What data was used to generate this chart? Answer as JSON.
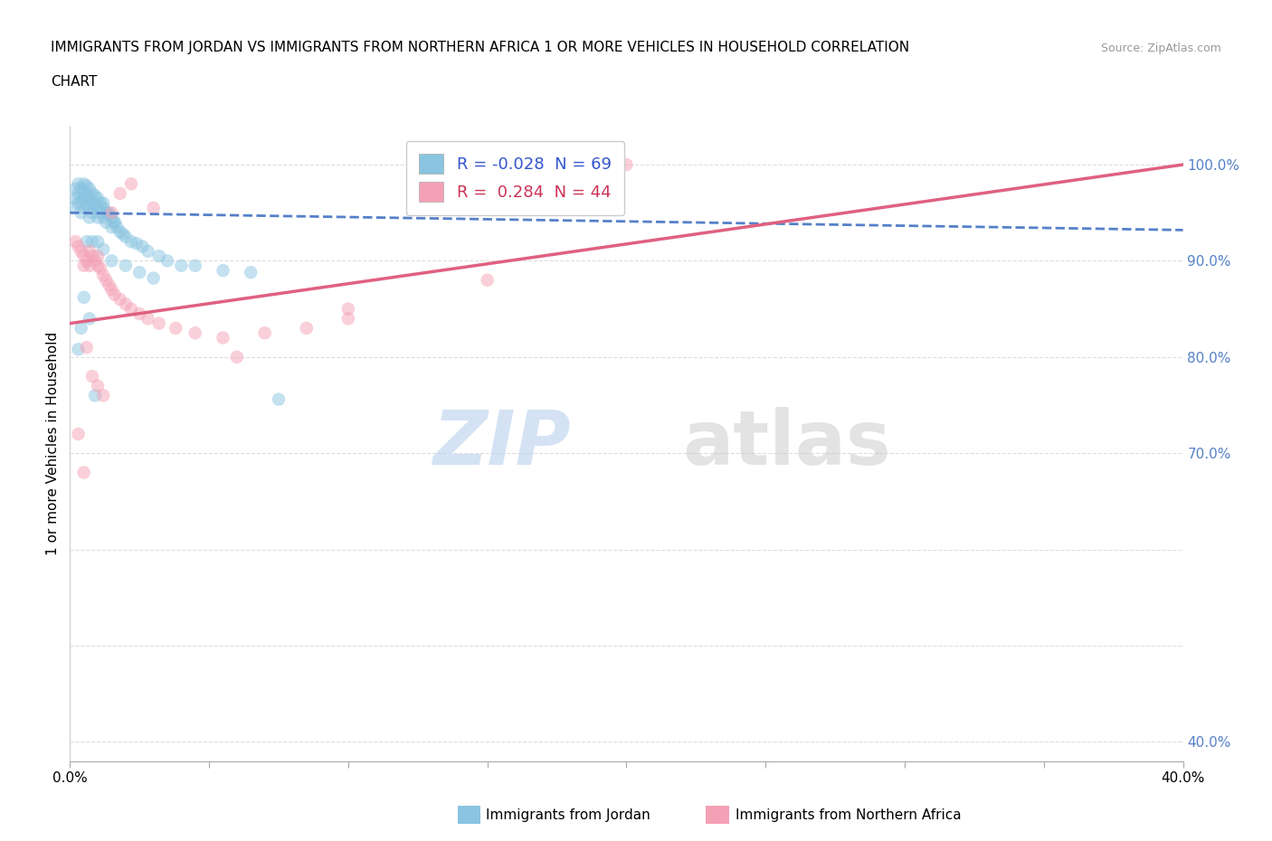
{
  "title_line1": "IMMIGRANTS FROM JORDAN VS IMMIGRANTS FROM NORTHERN AFRICA 1 OR MORE VEHICLES IN HOUSEHOLD CORRELATION",
  "title_line2": "CHART",
  "source": "Source: ZipAtlas.com",
  "ylabel": "1 or more Vehicles in Household",
  "legend_label1": "Immigrants from Jordan",
  "legend_label2": "Immigrants from Northern Africa",
  "R1": -0.028,
  "N1": 69,
  "R2": 0.284,
  "N2": 44,
  "color_jordan": "#89c4e1",
  "color_northern_africa": "#f4a0b5",
  "color_jordan_line": "#5580c8",
  "color_na_line": "#e06080",
  "xmin": 0.0,
  "xmax": 0.4,
  "ymin": 0.38,
  "ymax": 1.04,
  "ytick_positions": [
    0.4,
    0.5,
    0.6,
    0.7,
    0.8,
    0.9,
    1.0
  ],
  "ytick_labels": [
    "40.0%",
    "",
    "",
    "70.0%",
    "80.0%",
    "90.0%",
    "100.0%"
  ],
  "jordan_x": [
    0.001,
    0.002,
    0.002,
    0.003,
    0.003,
    0.003,
    0.004,
    0.004,
    0.004,
    0.005,
    0.005,
    0.005,
    0.005,
    0.006,
    0.006,
    0.006,
    0.007,
    0.007,
    0.007,
    0.007,
    0.008,
    0.008,
    0.008,
    0.009,
    0.009,
    0.01,
    0.01,
    0.01,
    0.011,
    0.011,
    0.012,
    0.012,
    0.013,
    0.013,
    0.014,
    0.015,
    0.015,
    0.016,
    0.017,
    0.018,
    0.019,
    0.02,
    0.022,
    0.024,
    0.026,
    0.028,
    0.032,
    0.035,
    0.04,
    0.045,
    0.055,
    0.065,
    0.012,
    0.014,
    0.016,
    0.009,
    0.007,
    0.006,
    0.005,
    0.004,
    0.003,
    0.008,
    0.01,
    0.012,
    0.015,
    0.02,
    0.025,
    0.03,
    0.075
  ],
  "jordan_y": [
    0.955,
    0.965,
    0.975,
    0.97,
    0.96,
    0.98,
    0.975,
    0.962,
    0.95,
    0.98,
    0.972,
    0.965,
    0.955,
    0.978,
    0.968,
    0.958,
    0.975,
    0.965,
    0.955,
    0.945,
    0.97,
    0.96,
    0.95,
    0.968,
    0.958,
    0.965,
    0.955,
    0.945,
    0.96,
    0.95,
    0.955,
    0.945,
    0.95,
    0.94,
    0.948,
    0.945,
    0.935,
    0.94,
    0.935,
    0.93,
    0.928,
    0.925,
    0.92,
    0.918,
    0.915,
    0.91,
    0.905,
    0.9,
    0.895,
    0.895,
    0.89,
    0.888,
    0.96,
    0.95,
    0.94,
    0.76,
    0.84,
    0.92,
    0.862,
    0.83,
    0.808,
    0.92,
    0.92,
    0.912,
    0.9,
    0.895,
    0.888,
    0.882,
    0.756
  ],
  "na_x": [
    0.002,
    0.003,
    0.004,
    0.005,
    0.005,
    0.006,
    0.007,
    0.007,
    0.008,
    0.009,
    0.01,
    0.01,
    0.011,
    0.012,
    0.013,
    0.014,
    0.015,
    0.016,
    0.018,
    0.02,
    0.022,
    0.025,
    0.028,
    0.032,
    0.038,
    0.045,
    0.055,
    0.07,
    0.085,
    0.1,
    0.008,
    0.01,
    0.012,
    0.006,
    0.005,
    0.003,
    0.015,
    0.018,
    0.022,
    0.03,
    0.06,
    0.1,
    0.15,
    0.2
  ],
  "na_y": [
    0.92,
    0.915,
    0.91,
    0.905,
    0.895,
    0.9,
    0.91,
    0.895,
    0.905,
    0.9,
    0.895,
    0.905,
    0.892,
    0.885,
    0.88,
    0.875,
    0.87,
    0.865,
    0.86,
    0.855,
    0.85,
    0.845,
    0.84,
    0.835,
    0.83,
    0.825,
    0.82,
    0.825,
    0.83,
    0.84,
    0.78,
    0.77,
    0.76,
    0.81,
    0.68,
    0.72,
    0.95,
    0.97,
    0.98,
    0.955,
    0.8,
    0.85,
    0.88,
    1.0
  ],
  "watermark_zip": "ZIP",
  "watermark_atlas": "atlas",
  "background_color": "#ffffff",
  "grid_color": "#dddddd",
  "ytick_color": "#5580c8"
}
